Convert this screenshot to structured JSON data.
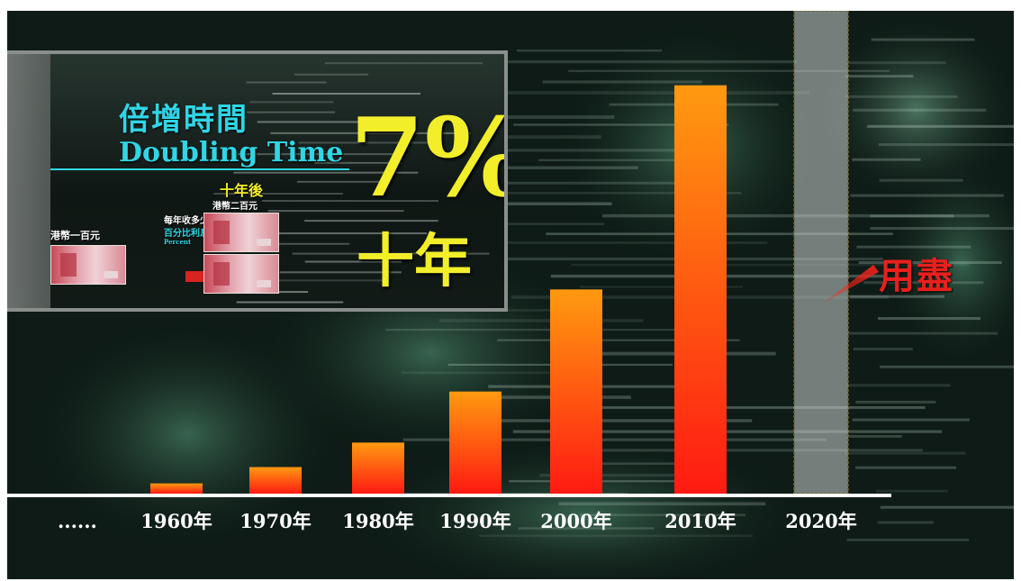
{
  "inset": {
    "title_zh": "倍增時間",
    "title_en": "Doubling Time",
    "rate": "7%",
    "period": "十年",
    "after_label": "十年後",
    "after_amount": "港幣二百元",
    "start_amount": "港幣一百元",
    "interest_line1": "每年收多少",
    "interest_line2": "百分比利息",
    "interest_line3": "Percent",
    "arrow_icon": "right-arrow-icon",
    "colors": {
      "title": "#2fd6e6",
      "highlight": "#f2ee2a",
      "arrow": "#d8241e"
    }
  },
  "annotation": {
    "text": "用盡",
    "color": "#e8201c"
  },
  "chart_data": {
    "type": "bar",
    "leading_label": "......",
    "categories": [
      "1960年",
      "1970年",
      "1980年",
      "1990年",
      "2000年",
      "2010年",
      "2020年"
    ],
    "values": [
      1,
      2.6,
      5,
      10,
      20,
      40,
      null
    ],
    "title": "",
    "xlabel": "",
    "ylabel": "",
    "ylim": [
      0,
      42
    ],
    "grid": false,
    "bar_gradient": [
      "#ff9a10",
      "#ff1a12"
    ],
    "highlight_category": "2020年"
  }
}
